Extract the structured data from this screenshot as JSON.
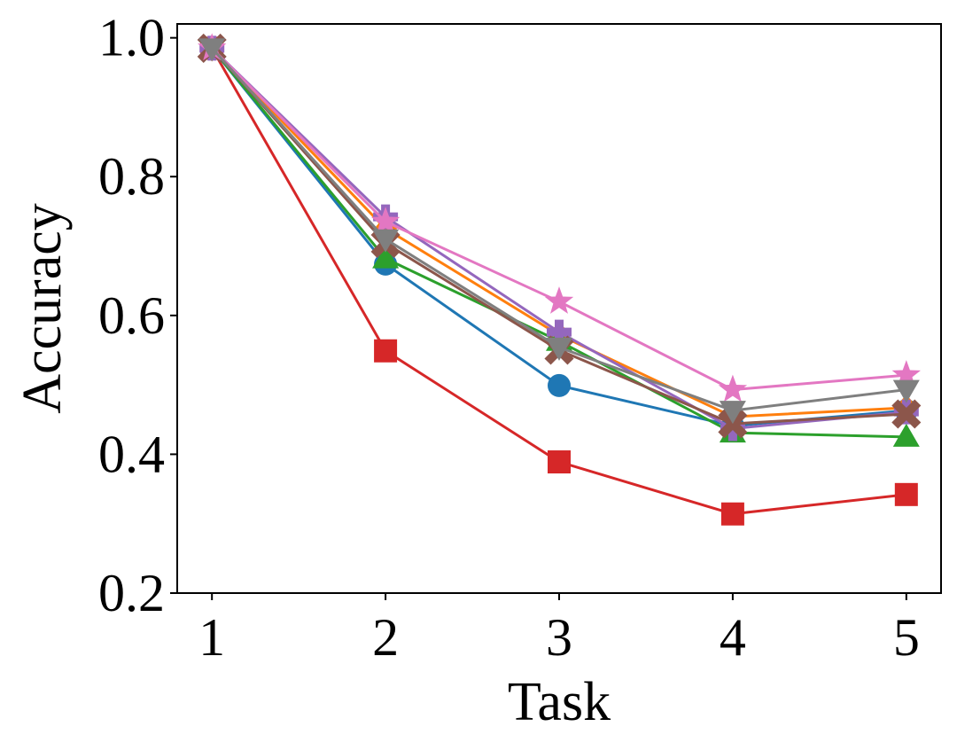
{
  "chart_data": {
    "type": "line",
    "title": "",
    "xlabel": "Task",
    "ylabel": "Accuracy",
    "x": [
      1,
      2,
      3,
      4,
      5
    ],
    "xticks": [
      "1",
      "2",
      "3",
      "4",
      "5"
    ],
    "yticks": [
      "0.2",
      "0.4",
      "0.6",
      "0.8",
      "1.0"
    ],
    "ytick_values": [
      0.2,
      0.4,
      0.6,
      0.8,
      1.0
    ],
    "xlim": [
      0.8,
      5.2
    ],
    "ylim": [
      0.2,
      1.02
    ],
    "grid": false,
    "legend": "none",
    "series": [
      {
        "name": "series-blue",
        "color": "#1f77b4",
        "marker": "circle",
        "values": [
          0.985,
          0.674,
          0.499,
          0.441,
          0.463
        ]
      },
      {
        "name": "series-orange",
        "color": "#ff7f0e",
        "marker": "diamond",
        "values": [
          0.985,
          0.725,
          0.572,
          0.454,
          0.467
        ]
      },
      {
        "name": "series-green",
        "color": "#2ca02c",
        "marker": "triangle-up",
        "values": [
          0.985,
          0.682,
          0.563,
          0.431,
          0.425
        ]
      },
      {
        "name": "series-red",
        "color": "#d62728",
        "marker": "square",
        "values": [
          0.985,
          0.549,
          0.389,
          0.314,
          0.342
        ]
      },
      {
        "name": "series-purple",
        "color": "#9467bd",
        "marker": "plus",
        "values": [
          0.985,
          0.742,
          0.576,
          0.437,
          0.461
        ]
      },
      {
        "name": "series-brown",
        "color": "#8c564b",
        "marker": "x",
        "values": [
          0.985,
          0.704,
          0.55,
          0.444,
          0.458
        ]
      },
      {
        "name": "series-pink",
        "color": "#e377c2",
        "marker": "star",
        "values": [
          0.985,
          0.735,
          0.62,
          0.493,
          0.514
        ]
      },
      {
        "name": "series-gray",
        "color": "#7f7f7f",
        "marker": "triangle-down",
        "values": [
          0.985,
          0.71,
          0.554,
          0.463,
          0.493
        ]
      }
    ]
  }
}
